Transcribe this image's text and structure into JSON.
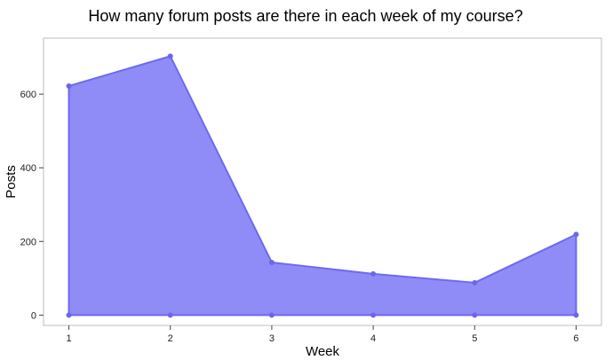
{
  "chart_data": {
    "type": "area",
    "title": "How many forum posts are there in each week of my course?",
    "xlabel": "Week",
    "ylabel": "Posts",
    "x": [
      1,
      2,
      3,
      4,
      5,
      6
    ],
    "y": [
      622,
      703,
      143,
      112,
      88,
      219
    ],
    "xlim": [
      0.75,
      6.25
    ],
    "ylim": [
      -28,
      752
    ],
    "xticks": [
      1,
      2,
      3,
      4,
      5,
      6
    ],
    "yticks": [
      0,
      200,
      400,
      600
    ],
    "grid": false,
    "legend": "none",
    "colors": {
      "fill": "#8f8cf8",
      "line": "#6d6af0",
      "point": "#6a67ee"
    }
  }
}
